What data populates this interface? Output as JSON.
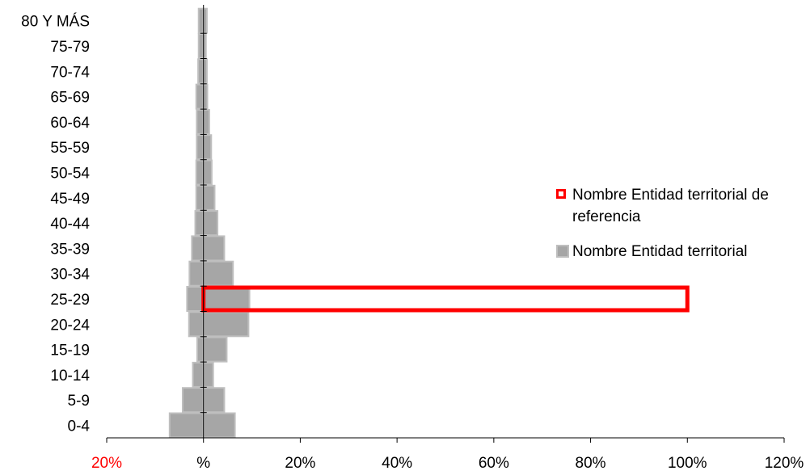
{
  "chart_data": {
    "type": "bar",
    "orientation": "horizontal",
    "subtype": "population-pyramid",
    "categories": [
      "0-4",
      "5-9",
      "10-14",
      "15-19",
      "20-24",
      "25-29",
      "30-34",
      "35-39",
      "40-44",
      "45-49",
      "50-54",
      "55-59",
      "60-64",
      "65-69",
      "70-74",
      "75-79",
      "80 Y MÁS"
    ],
    "series": [
      {
        "name": "Nombre Entidad territorial",
        "color": "#a6a6a6",
        "left_values": [
          7.0,
          4.3,
          2.2,
          1.3,
          3.0,
          3.4,
          2.9,
          2.4,
          1.7,
          1.5,
          1.5,
          1.4,
          1.4,
          1.5,
          1.1,
          1.0,
          1.0
        ],
        "right_values": [
          6.5,
          4.3,
          2.0,
          4.8,
          9.3,
          9.5,
          6.1,
          4.3,
          2.9,
          2.3,
          1.7,
          1.6,
          1.2,
          0.8,
          0.7,
          0.5,
          0.7
        ]
      },
      {
        "name": "Nombre Entidad territorial de referencia",
        "color": "#ff0000",
        "style": "outline",
        "left_values": [
          0,
          0,
          0,
          0,
          0,
          0,
          0,
          0,
          0,
          0,
          0,
          0,
          0,
          0,
          0,
          0,
          0
        ],
        "right_values": [
          0,
          0,
          0,
          0,
          0,
          100,
          0,
          0,
          0,
          0,
          0,
          0,
          0,
          0,
          0,
          0,
          0
        ]
      }
    ],
    "xlim": [
      -20,
      120
    ],
    "x_ticks": [
      {
        "value": -20,
        "label": "20%",
        "color": "#ff0000"
      },
      {
        "value": 0,
        "label": "%",
        "color": "#000000"
      },
      {
        "value": 20,
        "label": "20%",
        "color": "#000000"
      },
      {
        "value": 40,
        "label": "40%",
        "color": "#000000"
      },
      {
        "value": 60,
        "label": "60%",
        "color": "#000000"
      },
      {
        "value": 80,
        "label": "80%",
        "color": "#000000"
      },
      {
        "value": 100,
        "label": "100%",
        "color": "#000000"
      },
      {
        "value": 120,
        "label": "120%",
        "color": "#000000"
      }
    ],
    "grid": false,
    "legend_position": "right"
  }
}
